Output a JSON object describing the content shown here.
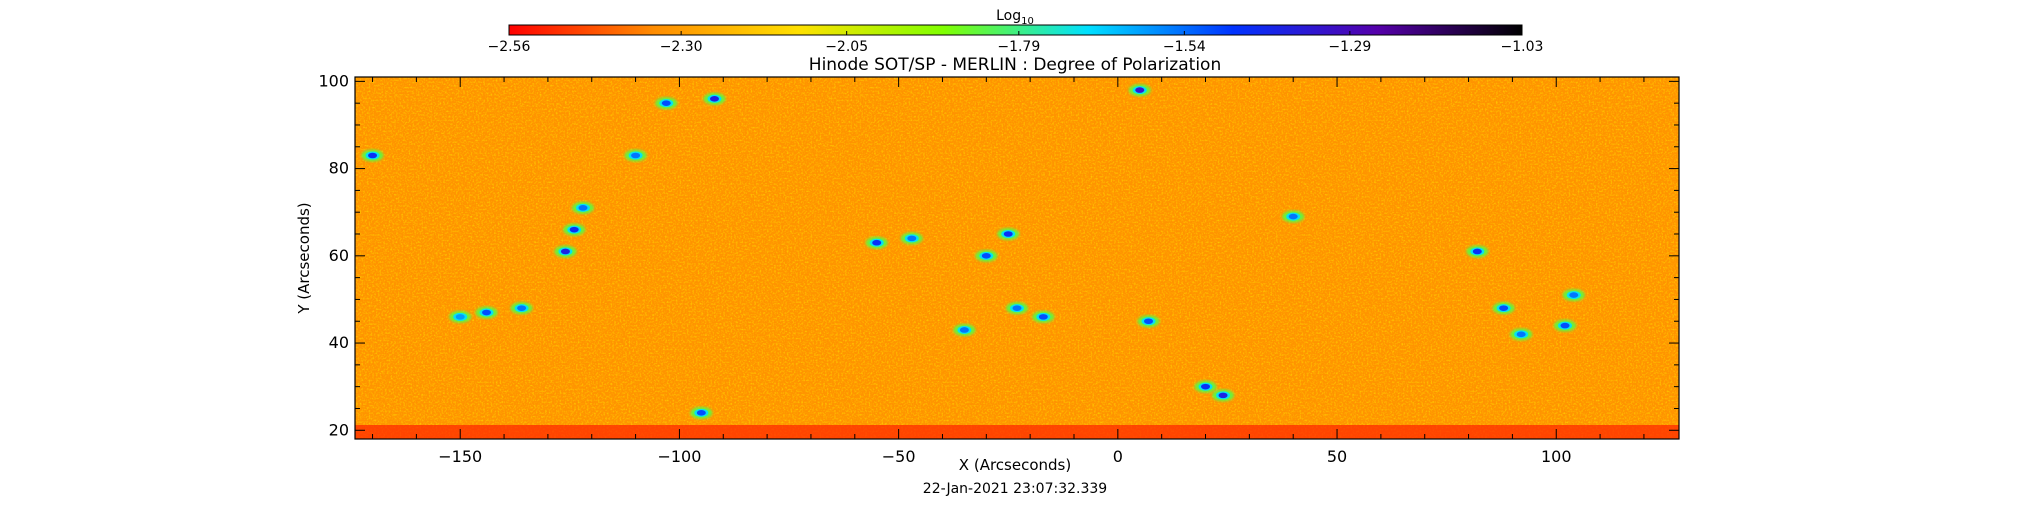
{
  "chart_data": {
    "type": "heatmap",
    "title": "Hinode SOT/SP - MERLIN : Degree of Polarization",
    "xlabel": "X (Arcseconds)",
    "ylabel": "Y (Arcseconds)",
    "xlim": [
      -174,
      128
    ],
    "ylim": [
      18,
      101
    ],
    "x_ticks": [
      -150,
      -100,
      -50,
      0,
      50,
      100
    ],
    "y_ticks": [
      20,
      40,
      60,
      80,
      100
    ],
    "x_tick_labels": [
      "−150",
      "−100",
      "−50",
      "0",
      "50",
      "100"
    ],
    "y_tick_labels": [
      "20",
      "40",
      "60",
      "80",
      "100"
    ],
    "colorbar": {
      "label_base": "Log",
      "label_sub": "10",
      "range": [
        -2.56,
        -1.03
      ],
      "ticks": [
        -2.56,
        -2.3,
        -2.05,
        -1.79,
        -1.54,
        -1.29,
        -1.03
      ],
      "tick_labels": [
        "−2.56",
        "−2.30",
        "−2.05",
        "−1.79",
        "−1.54",
        "−1.29",
        "−1.03"
      ],
      "colormap": [
        "#ff0000",
        "#ff8c00",
        "#ffe000",
        "#80ff00",
        "#00e0ff",
        "#0033ff",
        "#5500aa",
        "#000000"
      ],
      "placement": "top"
    },
    "background_log_value": -2.32,
    "high_polarization_patches": [
      {
        "x": -170,
        "y": 83,
        "value": -1.45
      },
      {
        "x": -150,
        "y": 46,
        "value": -1.6
      },
      {
        "x": -144,
        "y": 47,
        "value": -1.5
      },
      {
        "x": -136,
        "y": 48,
        "value": -1.55
      },
      {
        "x": -126,
        "y": 61,
        "value": -1.4
      },
      {
        "x": -124,
        "y": 66,
        "value": -1.45
      },
      {
        "x": -122,
        "y": 71,
        "value": -1.55
      },
      {
        "x": -110,
        "y": 83,
        "value": -1.55
      },
      {
        "x": -103,
        "y": 95,
        "value": -1.5
      },
      {
        "x": -95,
        "y": 24,
        "value": -1.5
      },
      {
        "x": -92,
        "y": 96,
        "value": -1.4
      },
      {
        "x": -55,
        "y": 63,
        "value": -1.45
      },
      {
        "x": -47,
        "y": 64,
        "value": -1.55
      },
      {
        "x": -35,
        "y": 43,
        "value": -1.55
      },
      {
        "x": -30,
        "y": 60,
        "value": -1.5
      },
      {
        "x": -25,
        "y": 65,
        "value": -1.45
      },
      {
        "x": -23,
        "y": 48,
        "value": -1.55
      },
      {
        "x": -17,
        "y": 46,
        "value": -1.5
      },
      {
        "x": 5,
        "y": 98,
        "value": -1.35
      },
      {
        "x": 7,
        "y": 45,
        "value": -1.5
      },
      {
        "x": 20,
        "y": 30,
        "value": -1.45
      },
      {
        "x": 24,
        "y": 28,
        "value": -1.4
      },
      {
        "x": 40,
        "y": 69,
        "value": -1.55
      },
      {
        "x": 82,
        "y": 61,
        "value": -1.45
      },
      {
        "x": 88,
        "y": 48,
        "value": -1.5
      },
      {
        "x": 92,
        "y": 42,
        "value": -1.55
      },
      {
        "x": 102,
        "y": 44,
        "value": -1.5
      },
      {
        "x": 104,
        "y": 51,
        "value": -1.55
      }
    ],
    "grid": false
  },
  "footer": {
    "date_text": "22-Jan-2021 23:07:32.339"
  }
}
